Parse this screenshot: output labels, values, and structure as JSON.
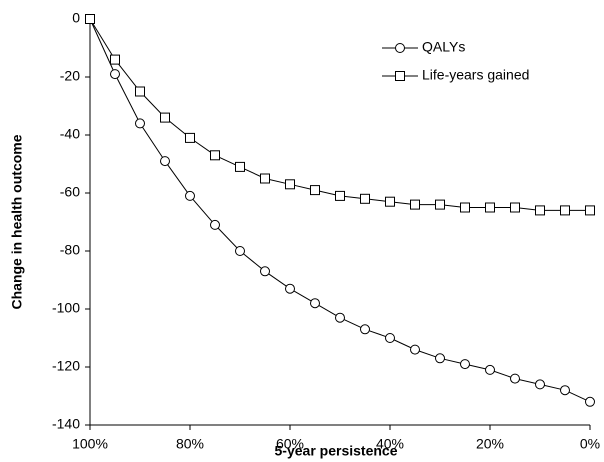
{
  "chart_data": {
    "type": "line",
    "xlabel": "5-year persistence",
    "ylabel": "Change in health outcome",
    "x": [
      100,
      95,
      90,
      85,
      80,
      75,
      70,
      65,
      60,
      55,
      50,
      45,
      40,
      35,
      30,
      25,
      20,
      15,
      10,
      5,
      0
    ],
    "series": [
      {
        "name": "QALYs",
        "marker": "circle",
        "color": "#000000",
        "values": [
          0,
          -19,
          -36,
          -49,
          -61,
          -71,
          -80,
          -87,
          -93,
          -98,
          -103,
          -107,
          -110,
          -114,
          -117,
          -119,
          -121,
          -124,
          -126,
          -128,
          -132
        ]
      },
      {
        "name": "Life-years gained",
        "marker": "square",
        "color": "#000000",
        "values": [
          0,
          -14,
          -25,
          -34,
          -41,
          -47,
          -51,
          -55,
          -57,
          -59,
          -61,
          -62,
          -63,
          -64,
          -64,
          -65,
          -65,
          -65,
          -66,
          -66,
          -66
        ]
      }
    ],
    "xlim": [
      100,
      0
    ],
    "xticks": [
      {
        "value": 100,
        "label": "100%"
      },
      {
        "value": 80,
        "label": "80%"
      },
      {
        "value": 60,
        "label": "60%"
      },
      {
        "value": 40,
        "label": "40%"
      },
      {
        "value": 20,
        "label": "20%"
      },
      {
        "value": 0,
        "label": "0%"
      }
    ],
    "ylim": [
      -140,
      0
    ],
    "yticks": [
      0,
      -20,
      -40,
      -60,
      -80,
      -100,
      -120,
      -140
    ],
    "grid": false,
    "legend": "top-right"
  }
}
